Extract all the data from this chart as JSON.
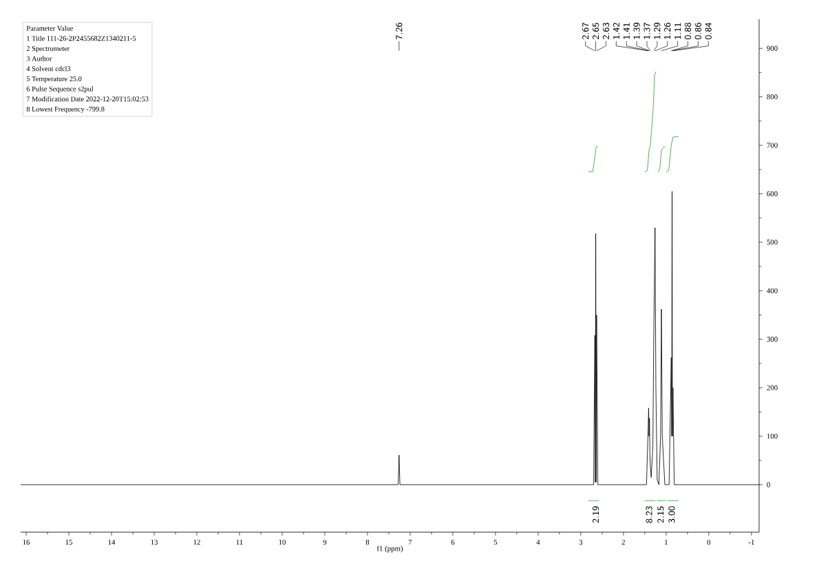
{
  "chart_data": {
    "type": "line",
    "xlabel": "f1 (ppm)",
    "xlim": [
      16.13,
      -1.18
    ],
    "ylim": [
      -98,
      960
    ],
    "xticks": [
      16,
      15,
      14,
      13,
      12,
      11,
      10,
      9,
      8,
      7,
      6,
      5,
      4,
      3,
      2,
      1,
      0,
      -1
    ],
    "yticks": [
      0,
      100,
      200,
      300,
      400,
      500,
      600,
      700,
      800,
      900
    ],
    "series": [
      {
        "color": "#000000",
        "x": [
          16.13,
          7.28,
          7.26,
          7.24,
          2.7,
          2.67,
          2.66,
          2.65,
          2.64,
          2.63,
          2.6,
          1.46,
          1.42,
          1.41,
          1.4,
          1.39,
          1.38,
          1.37,
          1.35,
          1.31,
          1.29,
          1.26,
          1.24,
          1.21,
          1.17,
          1.13,
          1.11,
          1.09,
          1.03,
          0.93,
          0.88,
          0.87,
          0.86,
          0.85,
          0.84,
          0.81,
          -1.18
        ],
        "values": [
          0,
          0,
          61,
          0,
          0,
          308,
          5,
          518,
          5,
          350,
          0,
          0,
          120,
          158,
          100,
          137,
          60,
          40,
          15,
          80,
          300,
          530,
          200,
          10,
          0,
          100,
          362,
          100,
          0,
          0,
          262,
          100,
          605,
          100,
          200,
          0,
          0
        ]
      },
      {
        "color": "#3a9a3a",
        "x": [
          2.82,
          2.72,
          2.68,
          2.64,
          2.6
        ],
        "values": [
          645,
          646,
          670,
          697,
          698
        ]
      },
      {
        "color": "#3a9a3a",
        "x": [
          1.5,
          1.44,
          1.4,
          1.37,
          1.3,
          1.27,
          1.24
        ],
        "values": [
          645,
          648,
          690,
          700,
          780,
          845,
          852
        ]
      },
      {
        "color": "#3a9a3a",
        "x": [
          1.19,
          1.15,
          1.11,
          1.05,
          1.02
        ],
        "values": [
          645,
          650,
          690,
          697,
          697
        ]
      },
      {
        "color": "#3a9a3a",
        "x": [
          1.0,
          0.94,
          0.88,
          0.84,
          0.71
        ],
        "values": [
          645,
          648,
          700,
          717,
          718
        ]
      },
      {
        "color": "#3a9a3a",
        "x": [
          2.82,
          2.57
        ],
        "values": [
          -33,
          -33
        ]
      },
      {
        "color": "#3a9a3a",
        "x": [
          1.5,
          1.25
        ],
        "values": [
          -33,
          -33
        ]
      },
      {
        "color": "#3a9a3a",
        "x": [
          1.21,
          1.01
        ],
        "values": [
          -33,
          -33
        ]
      },
      {
        "color": "#3a9a3a",
        "x": [
          0.97,
          0.71
        ],
        "values": [
          -33,
          -33
        ]
      }
    ],
    "annotations": [
      "Parameter Value",
      "1 Title 111-26-2P2455682Z1340211-5",
      "2 Spectrometer",
      "3 Author",
      "4 Solvent cdcl3",
      "5 Temperature 25.0",
      "6 Pulse Sequence s2pul",
      "7 Modification Date 2022-12-20T15:02:53",
      "8 Lowest Frequency -799.8",
      "7.26",
      "2.67",
      "2.65",
      "2.63",
      "1.42",
      "1.41",
      "1.39",
      "1.37",
      "1.29",
      "1.26",
      "1.11",
      "0.88",
      "0.86",
      "0.84",
      {
        "text": "2.19",
        "x": 2.65,
        "y": -33
      },
      {
        "text": "8.23",
        "x": 1.4,
        "y": -33
      },
      {
        "text": "2.15",
        "x": 1.13,
        "y": -33
      },
      {
        "text": "3.00",
        "x": 0.87,
        "y": -33
      }
    ]
  }
}
